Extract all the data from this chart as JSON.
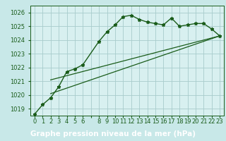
{
  "title": "Graphe pression niveau de la mer (hPa)",
  "bg_color": "#c8e8e8",
  "plot_bg_color": "#d8f0f0",
  "grid_color": "#a8cccc",
  "line_color": "#1a5c1a",
  "xlabel_bg": "#2a6030",
  "xlabel_fg": "#ffffff",
  "xlim": [
    -0.5,
    23.5
  ],
  "ylim": [
    1018.5,
    1026.5
  ],
  "yticks": [
    1019,
    1020,
    1021,
    1022,
    1023,
    1024,
    1025,
    1026
  ],
  "xtick_labels": [
    "0",
    "1",
    "2",
    "3",
    "4",
    "5",
    "6",
    "",
    "8",
    "9",
    "10",
    "11",
    "12",
    "13",
    "14",
    "15",
    "16",
    "17",
    "18",
    "19",
    "20",
    "21",
    "22",
    "23"
  ],
  "series1_x": [
    0,
    1,
    2,
    3,
    4,
    5,
    6,
    8,
    9,
    10,
    11,
    12,
    13,
    14,
    15,
    16,
    17,
    18,
    19,
    20,
    21,
    22,
    23
  ],
  "series1_y": [
    1018.6,
    1019.3,
    1019.8,
    1020.6,
    1021.7,
    1021.9,
    1022.2,
    1023.9,
    1024.6,
    1025.1,
    1025.7,
    1025.8,
    1025.5,
    1025.3,
    1025.2,
    1025.1,
    1025.6,
    1025.0,
    1025.1,
    1025.2,
    1025.2,
    1024.8,
    1024.3
  ],
  "series2_x": [
    2,
    23
  ],
  "series2_y": [
    1020.1,
    1024.3
  ],
  "series3_x": [
    2,
    23
  ],
  "series3_y": [
    1021.1,
    1024.3
  ],
  "title_fontsize": 7.5,
  "tick_fontsize": 6.0
}
